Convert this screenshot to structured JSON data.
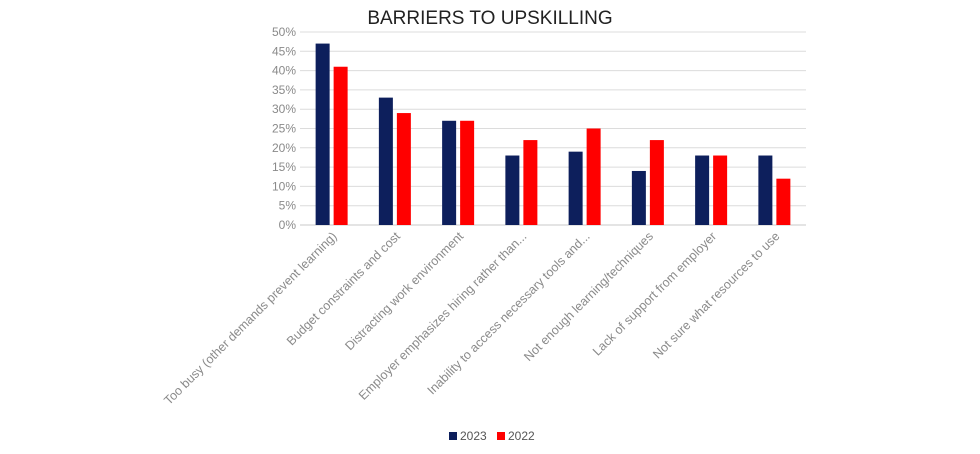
{
  "chart_data": {
    "type": "bar",
    "title": "BARRIERS TO UPSKILLING",
    "categories": [
      "Too busy (other demands prevent learning)",
      "Budget constraints and cost",
      "Distracting work environment",
      "Employer emphasizes hiring rather than...",
      "Inability to access necessary tools and...",
      "Not enough learning/techniques",
      "Lack of support from employer",
      "Not sure what resources to use"
    ],
    "series": [
      {
        "name": "2023",
        "color": "#0d1f5c",
        "values": [
          47,
          33,
          27,
          18,
          19,
          14,
          18,
          18
        ]
      },
      {
        "name": "2022",
        "color": "#ff0000",
        "values": [
          41,
          29,
          27,
          22,
          25,
          22,
          18,
          12
        ]
      }
    ],
    "ylim": [
      0,
      50
    ],
    "yticks": [
      "0%",
      "5%",
      "10%",
      "15%",
      "20%",
      "25%",
      "30%",
      "35%",
      "40%",
      "45%",
      "50%"
    ],
    "grid": true,
    "legend": "bottom"
  }
}
